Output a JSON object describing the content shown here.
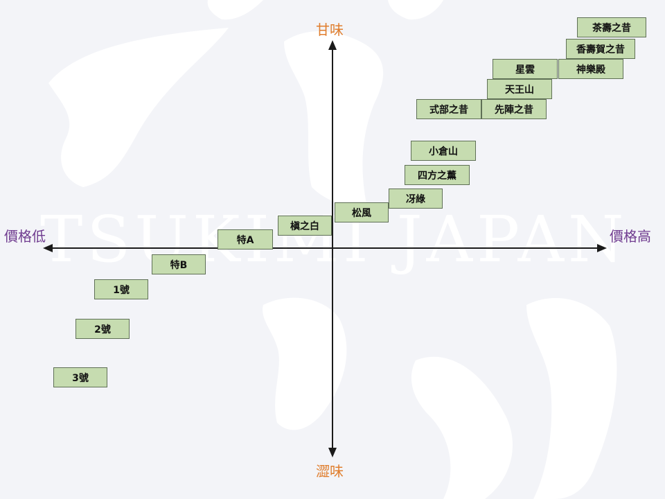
{
  "watermark": {
    "brand_text": "TSUKIMI JAPAN"
  },
  "axes": {
    "top": "甘味",
    "bottom": "澀味",
    "left": "價格低",
    "right": "價格高"
  },
  "colors": {
    "background": "#f3f4f8",
    "box_fill": "#c6dcb0",
    "box_border": "#5e6f55",
    "axis_sweet_bitter": "#e07e2e",
    "axis_price": "#6f3b8f",
    "axis_line": "#1a1a1a"
  },
  "items": [
    {
      "id": "chajunozhixi",
      "label": "茶壽之昔"
    },
    {
      "id": "xiangshouhe",
      "label": "香壽賀之昔"
    },
    {
      "id": "xingyun",
      "label": "星雲"
    },
    {
      "id": "shenyuedian",
      "label": "神樂殿"
    },
    {
      "id": "tianwangshan",
      "label": "天王山"
    },
    {
      "id": "shibuzhixi",
      "label": "式部之昔"
    },
    {
      "id": "xianzhenzhixi",
      "label": "先陣之昔"
    },
    {
      "id": "xiaocangshan",
      "label": "小倉山"
    },
    {
      "id": "sifangzhixun",
      "label": "四方之薰"
    },
    {
      "id": "yalu",
      "label": "冴綠"
    },
    {
      "id": "songfeng",
      "label": "松風"
    },
    {
      "id": "zhenzhibai",
      "label": "槇之白"
    },
    {
      "id": "te-a",
      "label": "特A"
    },
    {
      "id": "te-b",
      "label": "特B"
    },
    {
      "id": "hao-1",
      "label": "1號"
    },
    {
      "id": "hao-2",
      "label": "2號"
    },
    {
      "id": "hao-3",
      "label": "3號"
    }
  ]
}
